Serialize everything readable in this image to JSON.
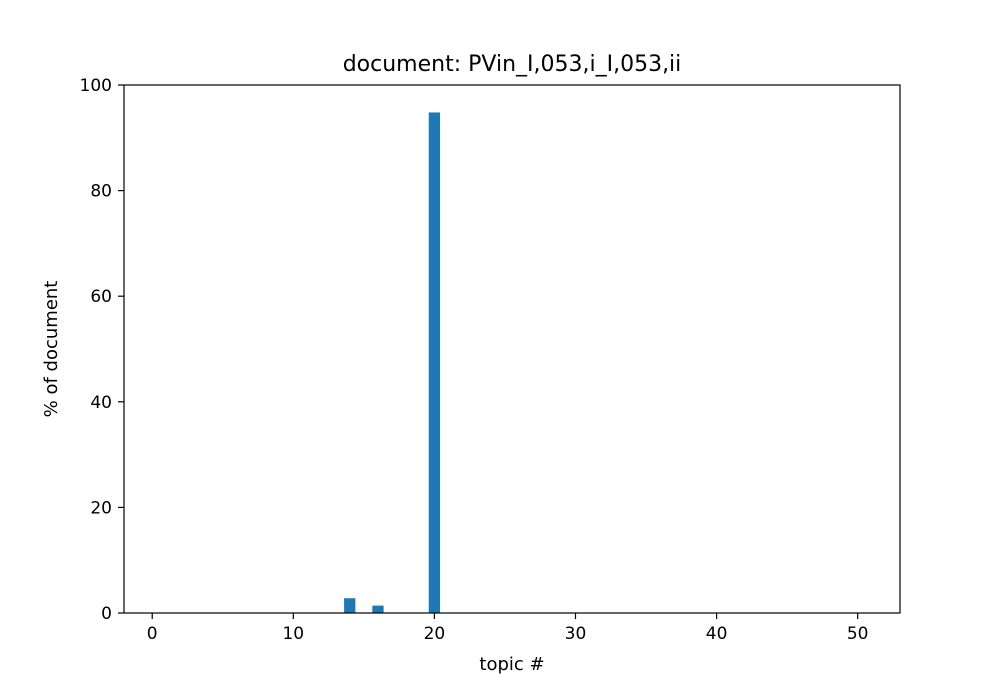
{
  "chart_data": {
    "type": "bar",
    "title": "document: PVin_I,053,i_I,053,ii",
    "xlabel": "topic #",
    "ylabel": "% of document",
    "x": [
      14,
      16,
      20
    ],
    "values": [
      2.8,
      1.4,
      94.8
    ],
    "xlim": [
      -2,
      53
    ],
    "ylim": [
      0,
      100
    ],
    "xticks": [
      0,
      10,
      20,
      30,
      40,
      50
    ],
    "yticks": [
      0,
      20,
      40,
      60,
      80,
      100
    ],
    "grid": false,
    "bar_color": "#1f77b4",
    "bar_width": 0.8
  }
}
